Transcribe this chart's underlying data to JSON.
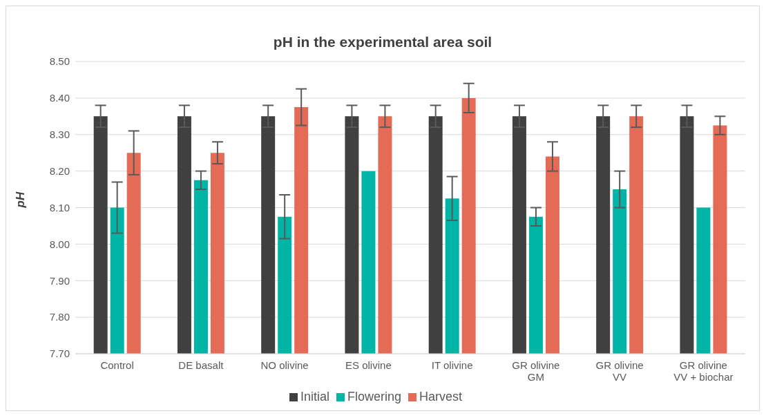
{
  "chart_data": {
    "type": "bar",
    "title": "pH in the experimental area soil",
    "ylabel": "pH",
    "categories": [
      "Control",
      "DE basalt",
      "NO olivine",
      "ES olivine",
      "IT olivine",
      "GR olivine GM",
      "GR olivine VV",
      "GR olivine VV + biochar"
    ],
    "series": [
      {
        "name": "Initial",
        "color": "#404040",
        "values": [
          8.35,
          8.35,
          8.35,
          8.35,
          8.35,
          8.35,
          8.35,
          8.35
        ],
        "errors": [
          0.03,
          0.03,
          0.03,
          0.03,
          0.03,
          0.03,
          0.03,
          0.03
        ]
      },
      {
        "name": "Flowering",
        "color": "#00b5a5",
        "values": [
          8.1,
          8.175,
          8.075,
          8.2,
          8.125,
          8.075,
          8.15,
          8.1
        ],
        "errors": [
          0.07,
          0.025,
          0.06,
          0,
          0.06,
          0.025,
          0.05,
          0
        ]
      },
      {
        "name": "Harvest",
        "color": "#e46c57",
        "values": [
          8.25,
          8.25,
          8.375,
          8.35,
          8.4,
          8.24,
          8.35,
          8.325
        ],
        "errors": [
          0.06,
          0.03,
          0.05,
          0.03,
          0.04,
          0.04,
          0.03,
          0.025
        ]
      }
    ],
    "ylim": [
      7.7,
      8.5
    ],
    "yticks": [
      {
        "value": 7.7,
        "label": "7.70"
      },
      {
        "value": 7.8,
        "label": "7.80"
      },
      {
        "value": 7.9,
        "label": "7.90"
      },
      {
        "value": 8.0,
        "label": "8.00"
      },
      {
        "value": 8.1,
        "label": "8.10"
      },
      {
        "value": 8.2,
        "label": "8.20"
      },
      {
        "value": 8.3,
        "label": "8.30"
      },
      {
        "value": 8.4,
        "label": "8.40"
      },
      {
        "value": 8.5,
        "label": "8.50"
      }
    ],
    "grid": "y",
    "legend": "bottom"
  }
}
